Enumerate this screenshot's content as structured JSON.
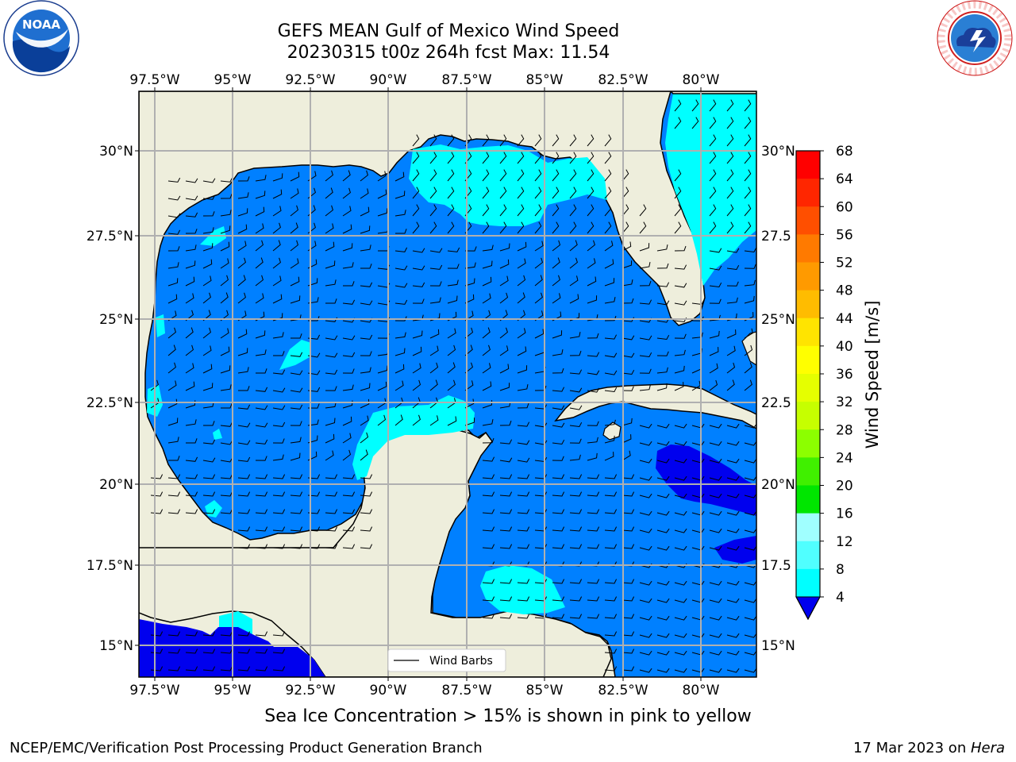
{
  "title_line1": "GEFS MEAN Gulf of Mexico Wind Speed",
  "title_line2": "20230315 t00z 264h fcst   Max: 11.54",
  "subtitle": "Sea Ice Concentration > 15% is shown in pink to yellow",
  "footer_left": "NCEP/EMC/Verification Post Processing Product Generation Branch",
  "footer_right_date": "17 Mar 2023 on ",
  "footer_right_host": "Hera",
  "legend_label": "Wind Barbs",
  "map": {
    "lon_ticks_top": [
      "97.5°W",
      "95°W",
      "92.5°W",
      "90°W",
      "87.5°W",
      "85°W",
      "82.5°W",
      "80°W"
    ],
    "lon_ticks_bottom": [
      "97.5°W",
      "95°W",
      "92.5°W",
      "90°W",
      "87.5°W",
      "85°W",
      "82.5°W",
      "80°W"
    ],
    "lat_ticks_left": [
      "30°N",
      "27.5°N",
      "25°N",
      "22.5°N",
      "20°N",
      "17.5°N",
      "15°N"
    ],
    "lat_ticks_right": [
      "30°N",
      "27.5",
      "25°N",
      "22.5",
      "20°N",
      "17.5",
      "15°N"
    ],
    "colors": {
      "land": "#eeeedc",
      "ocean_4_8": "#0080ff",
      "ocean_8_12": "#00ffff",
      "ocean_lt4": "#0000ee",
      "grid": "#b0b0b0"
    }
  },
  "colorbar": {
    "label": "Wind Speed [m/s]",
    "ticks": [
      "68",
      "64",
      "60",
      "56",
      "52",
      "48",
      "44",
      "40",
      "36",
      "32",
      "28",
      "24",
      "20",
      "16",
      "12",
      "8",
      "4"
    ],
    "colors": [
      "#ff0000",
      "#ff2600",
      "#ff4f00",
      "#ff7a00",
      "#ff9a00",
      "#ffbc00",
      "#ffe400",
      "#ffff00",
      "#e5ff00",
      "#c6ff00",
      "#8cff00",
      "#40f000",
      "#00e600",
      "#50ff78",
      "#a0ffff",
      "#50ffff",
      "#00ffff",
      "#0080ff"
    ],
    "under_color": "#0000ee"
  },
  "logos": {
    "left": "NOAA",
    "left_ring_text": "NATIONAL OCEANIC AND ATMOSPHERIC ADMINISTRATION · U.S. DEPARTMENT OF COMMERCE",
    "right_ring_text": "NATIONAL WEATHER SERVICE"
  }
}
